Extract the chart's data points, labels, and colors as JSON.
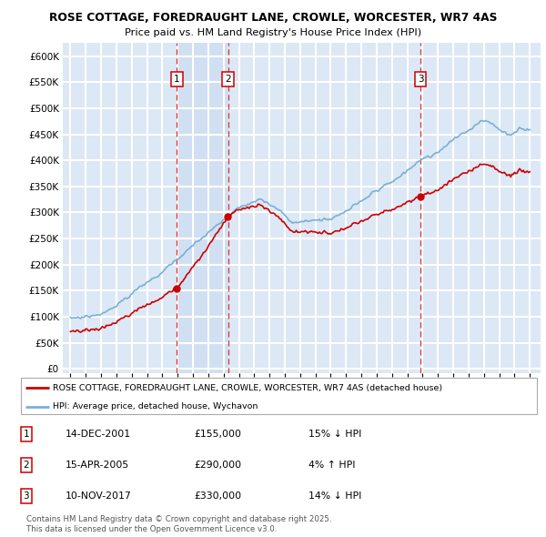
{
  "title1": "ROSE COTTAGE, FOREDRAUGHT LANE, CROWLE, WORCESTER, WR7 4AS",
  "title2": "Price paid vs. HM Land Registry's House Price Index (HPI)",
  "ytick_vals": [
    0,
    50000,
    100000,
    150000,
    200000,
    250000,
    300000,
    350000,
    400000,
    450000,
    500000,
    550000,
    600000
  ],
  "ytick_labels": [
    "£0",
    "£50K",
    "£100K",
    "£150K",
    "£200K",
    "£250K",
    "£300K",
    "£350K",
    "£400K",
    "£450K",
    "£500K",
    "£550K",
    "£600K"
  ],
  "bg_color": "#dce8f5",
  "grid_color": "#ffffff",
  "red_color": "#cc0000",
  "blue_color": "#7ab0d4",
  "vline_color": "#dd3333",
  "shade_color": "#dce8f5",
  "sale1_x": 2001.958,
  "sale2_x": 2005.288,
  "sale3_x": 2017.86,
  "sale1_price": 155000,
  "sale2_price": 290000,
  "sale3_price": 330000,
  "legend_red": "ROSE COTTAGE, FOREDRAUGHT LANE, CROWLE, WORCESTER, WR7 4AS (detached house)",
  "legend_blue": "HPI: Average price, detached house, Wychavon",
  "table": [
    {
      "num": "1",
      "date": "14-DEC-2001",
      "price": "£155,000",
      "pct": "15% ↓ HPI"
    },
    {
      "num": "2",
      "date": "15-APR-2005",
      "price": "£290,000",
      "pct": "4% ↑ HPI"
    },
    {
      "num": "3",
      "date": "10-NOV-2017",
      "price": "£330,000",
      "pct": "14% ↓ HPI"
    }
  ],
  "footer": "Contains HM Land Registry data © Crown copyright and database right 2025.\nThis data is licensed under the Open Government Licence v3.0."
}
